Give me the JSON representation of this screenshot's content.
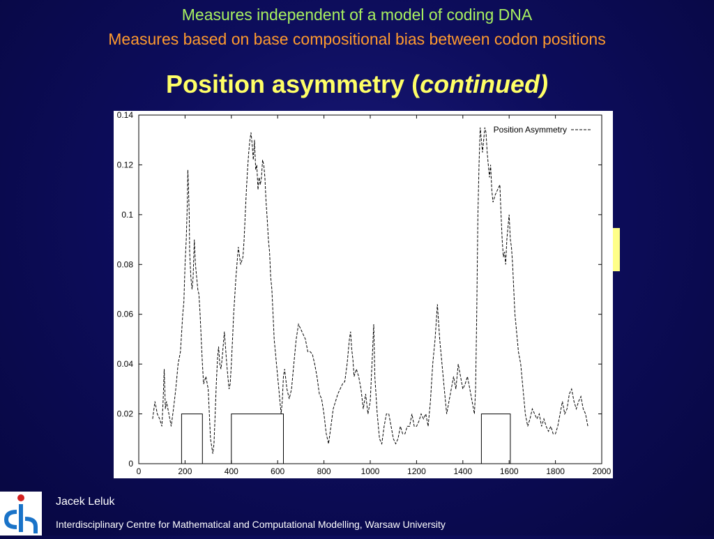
{
  "header": {
    "line1": "Measures independent of a model of coding DNA",
    "line2": "Measures based on base compositional bias between codon positions",
    "title_main": "Position asymmetry (",
    "title_italic": "continued)"
  },
  "footer": {
    "author": "Jacek Leluk",
    "affiliation": "Interdisciplinary Centre for Mathematical and Computational Modelling, Warsaw University"
  },
  "colors": {
    "line1": "#a8f060",
    "line2": "#ff9a2e",
    "title": "#ffff66",
    "logo_blue": "#1a73c8"
  },
  "chart_data": {
    "type": "line",
    "title": "",
    "xlabel": "",
    "ylabel": "",
    "xlim": [
      0,
      2000
    ],
    "ylim": [
      0,
      0.14
    ],
    "x_ticks": [
      0,
      200,
      400,
      600,
      800,
      1000,
      1200,
      1400,
      1600,
      1800,
      2000
    ],
    "y_ticks": [
      0,
      0.02,
      0.04,
      0.06,
      0.08,
      0.1,
      0.12,
      0.14
    ],
    "x_tick_labels": [
      "0",
      "200",
      "400",
      "600",
      "800",
      "1000",
      "1200",
      "1400",
      "1600",
      "1800",
      "2000"
    ],
    "y_tick_labels": [
      "0",
      "0.02",
      "0.04",
      "0.06",
      "0.08",
      "0.1",
      "0.12",
      "0.14"
    ],
    "legend": {
      "position": "top-right",
      "label": "Position Asymmetry"
    },
    "series": [
      {
        "name": "Position Asymmetry",
        "style": "dashed",
        "x": [
          60,
          70,
          80,
          90,
          100,
          105,
          110,
          115,
          120,
          130,
          140,
          150,
          160,
          170,
          180,
          190,
          195,
          200,
          205,
          210,
          212,
          215,
          218,
          220,
          225,
          230,
          235,
          240,
          245,
          250,
          255,
          260,
          265,
          270,
          275,
          280,
          290,
          300,
          310,
          320,
          325,
          330,
          335,
          340,
          345,
          350,
          355,
          360,
          370,
          380,
          385,
          390,
          395,
          400,
          405,
          410,
          420,
          430,
          440,
          450,
          455,
          460,
          465,
          470,
          475,
          480,
          485,
          490,
          495,
          500,
          505,
          510,
          515,
          520,
          525,
          530,
          535,
          540,
          545,
          550,
          555,
          560,
          565,
          570,
          575,
          580,
          585,
          590,
          595,
          600,
          605,
          610,
          615,
          620,
          625,
          630,
          640,
          650,
          660,
          670,
          680,
          690,
          700,
          710,
          720,
          730,
          740,
          750,
          760,
          770,
          780,
          790,
          800,
          810,
          820,
          830,
          840,
          850,
          860,
          870,
          880,
          890,
          900,
          910,
          915,
          920,
          925,
          930,
          940,
          950,
          960,
          970,
          980,
          990,
          1000,
          1010,
          1015,
          1020,
          1030,
          1040,
          1050,
          1060,
          1070,
          1080,
          1090,
          1100,
          1110,
          1120,
          1130,
          1140,
          1150,
          1160,
          1170,
          1180,
          1190,
          1200,
          1210,
          1220,
          1230,
          1240,
          1250,
          1260,
          1270,
          1280,
          1290,
          1300,
          1310,
          1320,
          1330,
          1340,
          1350,
          1360,
          1370,
          1380,
          1390,
          1400,
          1410,
          1420,
          1430,
          1440,
          1450,
          1455,
          1460,
          1465,
          1470,
          1475,
          1480,
          1485,
          1490,
          1495,
          1500,
          1505,
          1510,
          1515,
          1520,
          1525,
          1530,
          1540,
          1550,
          1560,
          1565,
          1570,
          1575,
          1580,
          1585,
          1590,
          1595,
          1600,
          1605,
          1610,
          1615,
          1620,
          1625,
          1630,
          1640,
          1650,
          1660,
          1670,
          1680,
          1690,
          1700,
          1710,
          1720,
          1730,
          1740,
          1750,
          1760,
          1770,
          1780,
          1790,
          1800,
          1810,
          1820,
          1830,
          1840,
          1850,
          1860,
          1870,
          1880,
          1890,
          1900,
          1910,
          1920,
          1930,
          1940
        ],
        "y": [
          0.018,
          0.025,
          0.02,
          0.018,
          0.015,
          0.025,
          0.038,
          0.022,
          0.025,
          0.02,
          0.015,
          0.022,
          0.03,
          0.04,
          0.045,
          0.06,
          0.065,
          0.08,
          0.09,
          0.105,
          0.118,
          0.11,
          0.1,
          0.085,
          0.075,
          0.07,
          0.075,
          0.09,
          0.08,
          0.075,
          0.07,
          0.068,
          0.06,
          0.05,
          0.04,
          0.032,
          0.035,
          0.03,
          0.01,
          0.004,
          0.008,
          0.02,
          0.032,
          0.042,
          0.047,
          0.04,
          0.038,
          0.042,
          0.053,
          0.04,
          0.035,
          0.03,
          0.032,
          0.04,
          0.05,
          0.06,
          0.075,
          0.087,
          0.08,
          0.083,
          0.09,
          0.1,
          0.11,
          0.118,
          0.125,
          0.13,
          0.133,
          0.128,
          0.122,
          0.13,
          0.118,
          0.12,
          0.11,
          0.115,
          0.112,
          0.115,
          0.122,
          0.12,
          0.115,
          0.105,
          0.098,
          0.09,
          0.085,
          0.075,
          0.07,
          0.06,
          0.05,
          0.045,
          0.04,
          0.035,
          0.03,
          0.025,
          0.02,
          0.025,
          0.035,
          0.038,
          0.03,
          0.026,
          0.03,
          0.04,
          0.05,
          0.056,
          0.054,
          0.052,
          0.05,
          0.045,
          0.045,
          0.044,
          0.04,
          0.035,
          0.028,
          0.026,
          0.02,
          0.012,
          0.008,
          0.015,
          0.022,
          0.025,
          0.028,
          0.03,
          0.032,
          0.033,
          0.04,
          0.05,
          0.053,
          0.046,
          0.042,
          0.035,
          0.038,
          0.035,
          0.03,
          0.022,
          0.028,
          0.02,
          0.025,
          0.045,
          0.056,
          0.035,
          0.02,
          0.01,
          0.008,
          0.015,
          0.02,
          0.02,
          0.015,
          0.01,
          0.008,
          0.01,
          0.015,
          0.012,
          0.012,
          0.015,
          0.015,
          0.02,
          0.015,
          0.015,
          0.017,
          0.02,
          0.018,
          0.02,
          0.015,
          0.025,
          0.04,
          0.05,
          0.064,
          0.05,
          0.04,
          0.03,
          0.02,
          0.025,
          0.03,
          0.035,
          0.03,
          0.04,
          0.035,
          0.03,
          0.032,
          0.035,
          0.03,
          0.025,
          0.02,
          0.03,
          0.06,
          0.1,
          0.12,
          0.135,
          0.13,
          0.125,
          0.13,
          0.135,
          0.133,
          0.125,
          0.12,
          0.115,
          0.12,
          0.11,
          0.105,
          0.108,
          0.11,
          0.112,
          0.1,
          0.09,
          0.083,
          0.085,
          0.08,
          0.09,
          0.095,
          0.1,
          0.09,
          0.087,
          0.08,
          0.07,
          0.06,
          0.055,
          0.045,
          0.04,
          0.03,
          0.02,
          0.015,
          0.018,
          0.022,
          0.02,
          0.018,
          0.02,
          0.015,
          0.018,
          0.015,
          0.013,
          0.015,
          0.012,
          0.012,
          0.015,
          0.02,
          0.025,
          0.02,
          0.022,
          0.028,
          0.03,
          0.025,
          0.022,
          0.025,
          0.027,
          0.022,
          0.02,
          0.015
        ]
      },
      {
        "name": "",
        "style": "solid",
        "x": [
          0,
          185,
          185,
          275,
          275,
          400,
          400,
          625,
          625,
          1480,
          1480,
          1605,
          1605,
          2000
        ],
        "y": [
          0,
          0,
          0.02,
          0.02,
          0,
          0,
          0.02,
          0.02,
          0,
          0,
          0.02,
          0.02,
          0,
          0
        ]
      }
    ]
  }
}
